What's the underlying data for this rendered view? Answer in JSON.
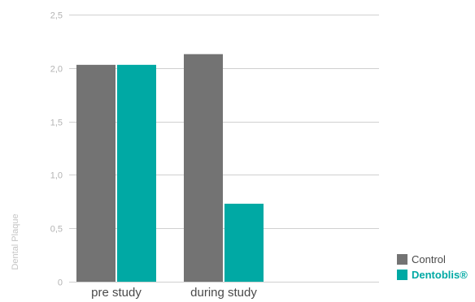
{
  "chart_data": {
    "type": "bar",
    "title": "",
    "xlabel": "",
    "ylabel": "Dental Plaque",
    "ylim": [
      0,
      2.5
    ],
    "yticks": [
      0,
      0.5,
      1.0,
      1.5,
      2.0,
      2.5
    ],
    "ytick_labels": [
      "0",
      "0,5",
      "1,0",
      "1,5",
      "2,0",
      "2,5"
    ],
    "grid": true,
    "legend_position": "bottom-right",
    "categories": [
      "pre study",
      "during study"
    ],
    "series": [
      {
        "name": "Control",
        "color": "#737373",
        "values": [
          2.03,
          2.13
        ]
      },
      {
        "name": "Dentoblis®",
        "color": "#00a9a4",
        "values": [
          2.03,
          0.73
        ]
      }
    ]
  }
}
